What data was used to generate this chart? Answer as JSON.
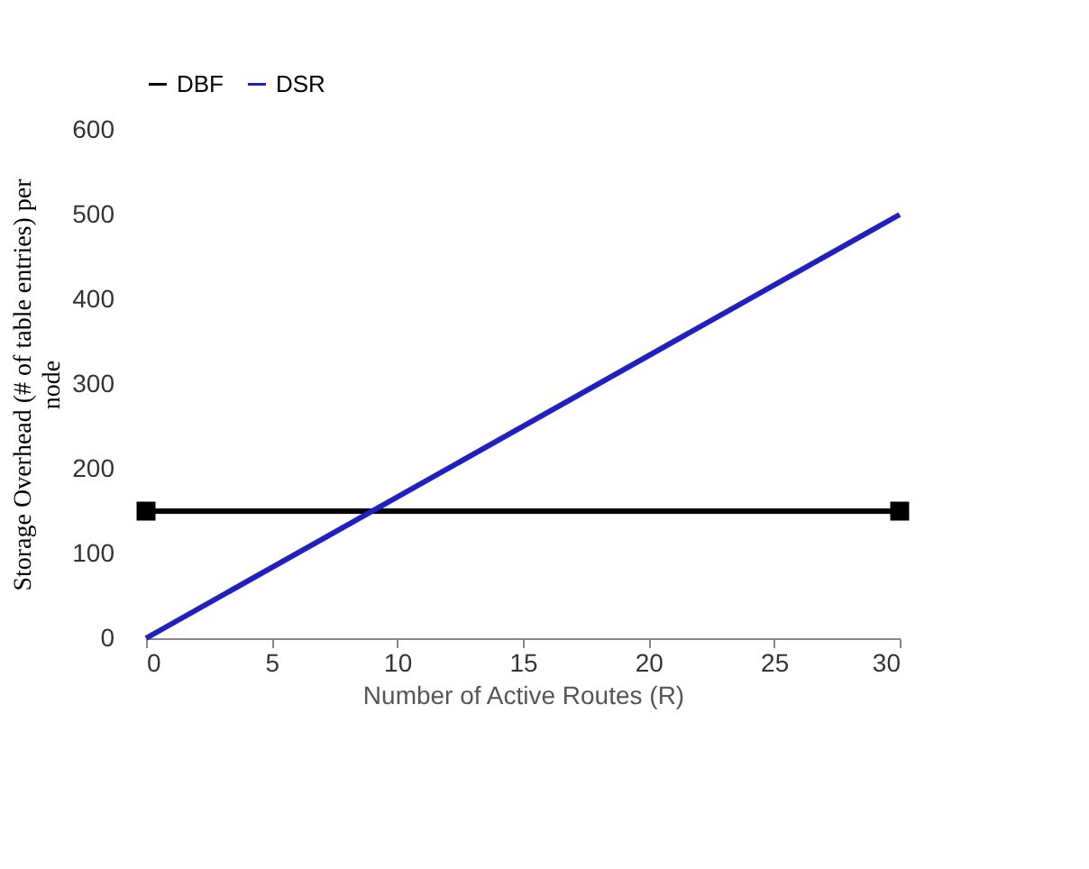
{
  "chart_data": {
    "type": "line",
    "xlabel": "Number of Active Routes (R)",
    "ylabel": "Storage Overhead (# of table entries) per node",
    "x": [
      0,
      30
    ],
    "xlim": [
      0,
      30
    ],
    "xticks": [
      0,
      5,
      10,
      15,
      20,
      25,
      30
    ],
    "ylim": [
      0,
      600
    ],
    "yticks": [
      0,
      100,
      200,
      300,
      400,
      500,
      600
    ],
    "grid": false,
    "legend": "top",
    "series": [
      {
        "name": "DBF",
        "color": "#000000",
        "values": [
          150,
          150
        ],
        "marker": "square"
      },
      {
        "name": "DSR",
        "color": "#2020c0",
        "values": [
          0,
          500
        ],
        "marker": "none"
      }
    ]
  }
}
